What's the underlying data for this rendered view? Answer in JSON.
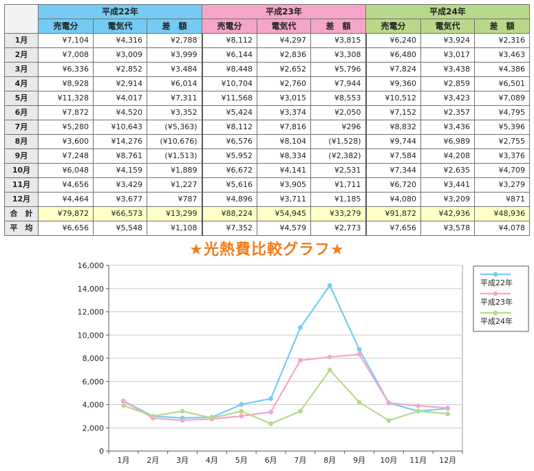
{
  "table": {
    "years": [
      {
        "label": "平成22年",
        "color": "#74ccf4"
      },
      {
        "label": "平成23年",
        "color": "#f5a6c8"
      },
      {
        "label": "平成24年",
        "color": "#b9d98a"
      }
    ],
    "sub_headers": [
      "売電分",
      "電気代",
      "差　額"
    ],
    "rows": [
      {
        "label": "1月",
        "cells": [
          "¥7,104",
          "¥4,316",
          "¥2,788",
          "¥8,112",
          "¥4,297",
          "¥3,815",
          "¥6,240",
          "¥3,924",
          "¥2,316"
        ]
      },
      {
        "label": "2月",
        "cells": [
          "¥7,008",
          "¥3,009",
          "¥3,999",
          "¥6,144",
          "¥2,836",
          "¥3,308",
          "¥6,480",
          "¥3,017",
          "¥3,463"
        ]
      },
      {
        "label": "3月",
        "cells": [
          "¥6,336",
          "¥2,852",
          "¥3,484",
          "¥8,448",
          "¥2,652",
          "¥5,796",
          "¥7,824",
          "¥3,438",
          "¥4,386"
        ]
      },
      {
        "label": "4月",
        "cells": [
          "¥8,928",
          "¥2,914",
          "¥6,014",
          "¥10,704",
          "¥2,760",
          "¥7,944",
          "¥9,360",
          "¥2,859",
          "¥6,501"
        ]
      },
      {
        "label": "5月",
        "cells": [
          "¥11,328",
          "¥4,017",
          "¥7,311",
          "¥11,568",
          "¥3,015",
          "¥8,553",
          "¥10,512",
          "¥3,423",
          "¥7,089"
        ]
      },
      {
        "label": "6月",
        "cells": [
          "¥7,872",
          "¥4,520",
          "¥3,352",
          "¥5,424",
          "¥3,374",
          "¥2,050",
          "¥7,152",
          "¥2,357",
          "¥4,795"
        ]
      },
      {
        "label": "7月",
        "cells": [
          "¥5,280",
          "¥10,643",
          "(¥5,363)",
          "¥8,112",
          "¥7,816",
          "¥296",
          "¥8,832",
          "¥3,436",
          "¥5,396"
        ]
      },
      {
        "label": "8月",
        "cells": [
          "¥3,600",
          "¥14,276",
          "(¥10,676)",
          "¥6,576",
          "¥8,104",
          "(¥1,528)",
          "¥9,744",
          "¥6,989",
          "¥2,755"
        ]
      },
      {
        "label": "9月",
        "cells": [
          "¥7,248",
          "¥8,761",
          "(¥1,513)",
          "¥5,952",
          "¥8,334",
          "(¥2,382)",
          "¥7,584",
          "¥4,208",
          "¥3,376"
        ]
      },
      {
        "label": "10月",
        "cells": [
          "¥6,048",
          "¥4,159",
          "¥1,889",
          "¥6,672",
          "¥4,141",
          "¥2,531",
          "¥7,344",
          "¥2,635",
          "¥4,709"
        ]
      },
      {
        "label": "11月",
        "cells": [
          "¥4,656",
          "¥3,429",
          "¥1,227",
          "¥5,616",
          "¥3,905",
          "¥1,711",
          "¥6,720",
          "¥3,441",
          "¥3,279"
        ]
      },
      {
        "label": "12月",
        "cells": [
          "¥4,464",
          "¥3,677",
          "¥787",
          "¥4,896",
          "¥3,711",
          "¥1,185",
          "¥4,080",
          "¥3,209",
          "¥871"
        ]
      }
    ],
    "total": {
      "label": "合　計",
      "cells": [
        "¥79,872",
        "¥66,573",
        "¥13,299",
        "¥88,224",
        "¥54,945",
        "¥33,279",
        "¥91,872",
        "¥42,936",
        "¥48,936"
      ]
    },
    "average": {
      "label": "平　均",
      "cells": [
        "¥6,656",
        "¥5,548",
        "¥1,108",
        "¥7,352",
        "¥4,579",
        "¥2,773",
        "¥7,656",
        "¥3,578",
        "¥4,078"
      ]
    }
  },
  "chart_data": {
    "type": "line",
    "title": "★光熱費比較グラフ★",
    "title_color": "#f07d1c",
    "categories": [
      "1月",
      "2月",
      "3月",
      "4月",
      "5月",
      "6月",
      "7月",
      "8月",
      "9月",
      "10月",
      "11月",
      "12月"
    ],
    "ylim": [
      0,
      16000
    ],
    "yticks": [
      0,
      2000,
      4000,
      6000,
      8000,
      10000,
      12000,
      14000,
      16000
    ],
    "ytick_labels": [
      "0",
      "2,000",
      "4,000",
      "6,000",
      "8,000",
      "10,000",
      "12,000",
      "14,000",
      "16,000"
    ],
    "grid": true,
    "legend_position": "right",
    "series": [
      {
        "name": "平成22年",
        "color": "#74ccf4",
        "values": [
          4316,
          3009,
          2852,
          2914,
          4017,
          4520,
          10643,
          14276,
          8761,
          4159,
          3429,
          3677
        ]
      },
      {
        "name": "平成23年",
        "color": "#f5a6c8",
        "values": [
          4297,
          2836,
          2652,
          2760,
          3015,
          3374,
          7816,
          8104,
          8334,
          4141,
          3905,
          3711
        ]
      },
      {
        "name": "平成24年",
        "color": "#b9d98a",
        "values": [
          3924,
          3017,
          3438,
          2859,
          3423,
          2357,
          3436,
          6989,
          4208,
          2635,
          3441,
          3209
        ]
      }
    ]
  }
}
